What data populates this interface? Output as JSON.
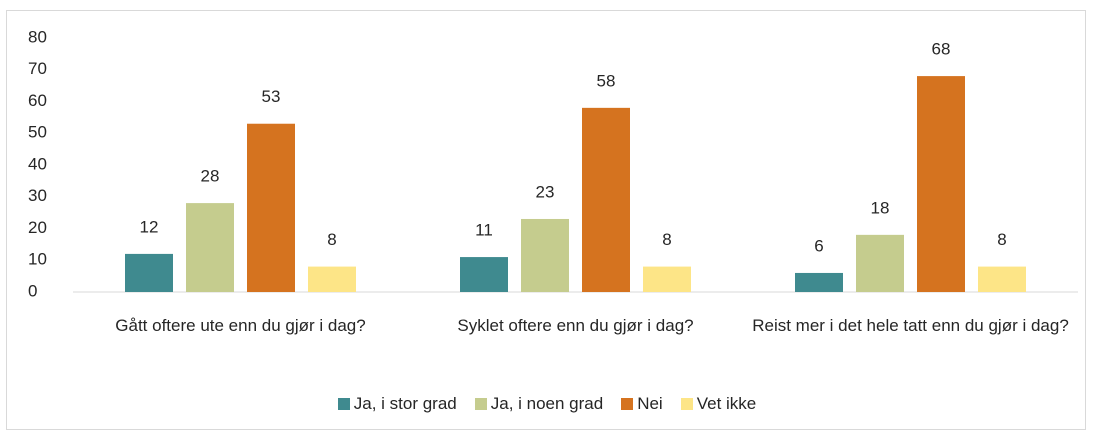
{
  "chart_data": {
    "type": "bar",
    "categories": [
      "Gått oftere ute enn du gjør i dag?",
      "Syklet oftere enn du gjør i dag?",
      "Reist mer i det hele tatt enn du gjør i dag?"
    ],
    "series": [
      {
        "name": "Ja, i stor grad",
        "color": "#3f8a8f",
        "values": [
          12,
          11,
          6
        ]
      },
      {
        "name": "Ja, i noen grad",
        "color": "#c5cc8e",
        "values": [
          28,
          23,
          18
        ]
      },
      {
        "name": "Nei",
        "color": "#d5731f",
        "values": [
          53,
          58,
          68
        ]
      },
      {
        "name": "Vet ikke",
        "color": "#fde587",
        "values": [
          8,
          8,
          8
        ]
      }
    ],
    "ylim": [
      0,
      80
    ],
    "yticks": [
      0,
      10,
      20,
      30,
      40,
      50,
      60,
      70,
      80
    ],
    "grid": false,
    "legend": "bottom"
  }
}
